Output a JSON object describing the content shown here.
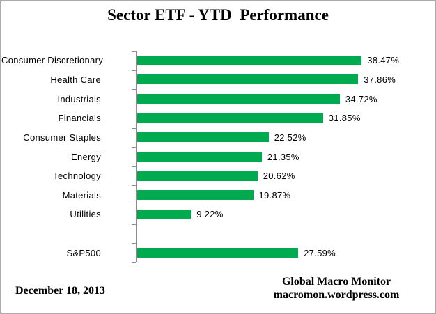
{
  "title": "Sector ETF - YTD  Performance",
  "footer": {
    "date": "December 18, 2013",
    "source_line1": "Global Macro Monitor",
    "source_line2": "macromon.wordpress.com"
  },
  "colors": {
    "bar": "#00AB4F",
    "axis": "#8C8C8C",
    "frame_border": "#ABABAB",
    "text": "#000000",
    "background": "#FFFFFF"
  },
  "chart_data": {
    "type": "bar",
    "orientation": "horizontal",
    "title": "Sector ETF - YTD  Performance",
    "xlabel": "",
    "ylabel": "",
    "xlim": [
      0,
      45
    ],
    "grid": false,
    "legend": false,
    "value_label_position": "outside-end",
    "categories": [
      "Consumer Discretionary",
      "Health Care",
      "Industrials",
      "Financials",
      "Consumer Staples",
      "Energy",
      "Technology",
      "Materials",
      "Utilities",
      "",
      "S&P500"
    ],
    "values": [
      38.47,
      37.86,
      34.72,
      31.85,
      22.52,
      21.35,
      20.62,
      19.87,
      9.22,
      null,
      27.59
    ],
    "value_labels": [
      "38.47%",
      "37.86%",
      "34.72%",
      "31.85%",
      "22.52%",
      "21.35%",
      "20.62%",
      "19.87%",
      "9.22%",
      "",
      "27.59%"
    ]
  }
}
